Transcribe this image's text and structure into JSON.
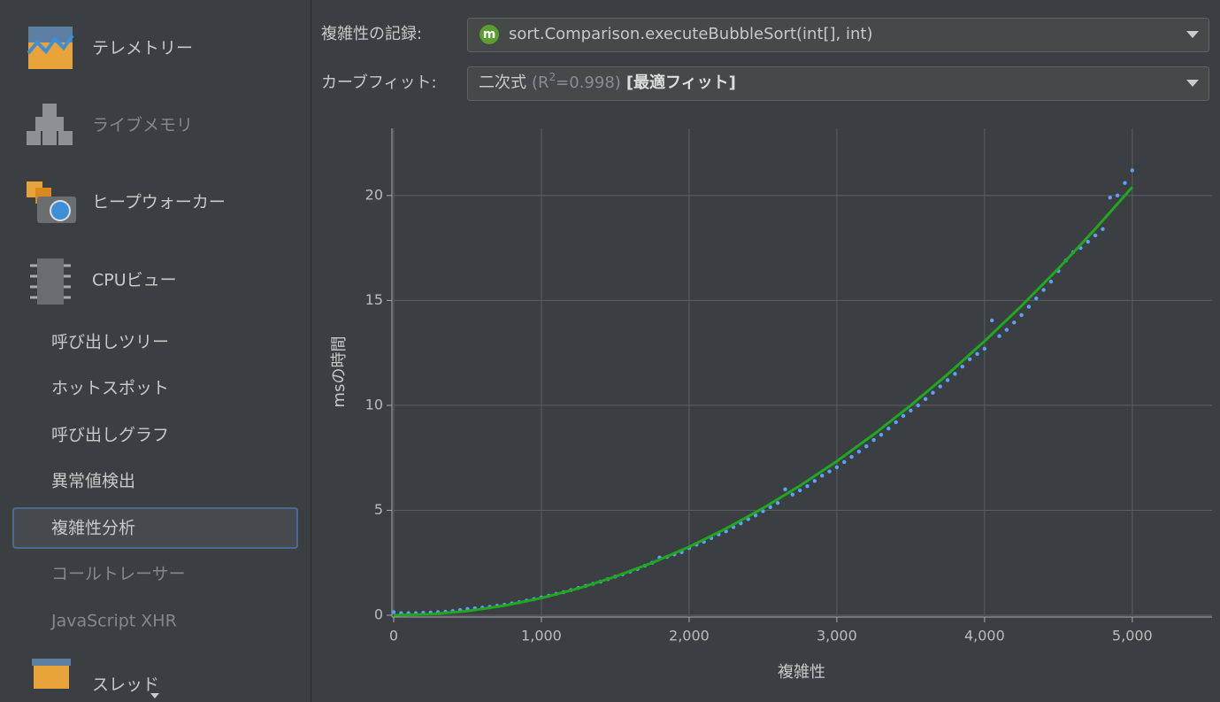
{
  "sidebar": {
    "items": [
      "テレメトリー",
      "ライブメモリ",
      "ヒープウォーカー",
      "CPUビュー",
      "呼び出しツリー",
      "ホットスポット",
      "呼び出しグラフ",
      "異常値検出",
      "複雑性分析",
      "コールトレーサー",
      "JavaScript XHR",
      "スレッド"
    ]
  },
  "controls": {
    "record_label": "複雑性の記録:",
    "record_value": "sort.Comparison.executeBubbleSort(int[], int)",
    "record_icon": "m",
    "fit_label": "カーブフィット:",
    "fit_value": {
      "name": "二次式",
      "r_open": "(R",
      "r_sup": "2",
      "r_close": "=0.998)",
      "best": "[最適フィット]"
    }
  },
  "chart_data": {
    "type": "scatter",
    "x_label": "複雑性",
    "y_label": "msの時間",
    "color": "#5aa0ff",
    "x": [
      0,
      50,
      100,
      150,
      200,
      250,
      300,
      350,
      400,
      450,
      500,
      550,
      600,
      650,
      700,
      750,
      800,
      850,
      900,
      950,
      1000,
      1050,
      1100,
      1150,
      1200,
      1250,
      1300,
      1350,
      1400,
      1450,
      1500,
      1550,
      1600,
      1650,
      1700,
      1750,
      1800,
      1850,
      1900,
      1950,
      2000,
      2050,
      2100,
      2150,
      2200,
      2250,
      2300,
      2350,
      2400,
      2450,
      2500,
      2550,
      2600,
      2650,
      2700,
      2750,
      2800,
      2850,
      2900,
      2950,
      3000,
      3050,
      3100,
      3150,
      3200,
      3250,
      3300,
      3350,
      3400,
      3450,
      3500,
      3550,
      3600,
      3650,
      3700,
      3750,
      3800,
      3850,
      3900,
      3950,
      4000,
      4050,
      4100,
      4150,
      4200,
      4250,
      4300,
      4350,
      4400,
      4450,
      4500,
      4550,
      4600,
      4650,
      4700,
      4750,
      4800,
      4850,
      4900,
      4950,
      5000
    ],
    "values": [
      0.15,
      0.1,
      0.1,
      0.1,
      0.12,
      0.13,
      0.15,
      0.17,
      0.2,
      0.25,
      0.3,
      0.33,
      0.36,
      0.4,
      0.45,
      0.5,
      0.56,
      0.62,
      0.7,
      0.77,
      0.85,
      0.93,
      1.02,
      1.1,
      1.2,
      1.3,
      1.4,
      1.5,
      1.6,
      1.72,
      1.84,
      1.95,
      2.08,
      2.2,
      2.36,
      2.5,
      2.75,
      2.78,
      2.9,
      3.0,
      3.2,
      3.36,
      3.5,
      3.68,
      3.85,
      4.0,
      4.2,
      4.38,
      4.58,
      4.76,
      4.96,
      5.15,
      5.35,
      6.0,
      5.75,
      5.95,
      6.15,
      6.4,
      6.65,
      6.85,
      7.05,
      7.3,
      7.55,
      7.8,
      8.05,
      8.35,
      8.6,
      8.9,
      9.2,
      9.5,
      9.75,
      10.0,
      10.3,
      10.6,
      10.9,
      11.2,
      11.5,
      11.85,
      12.2,
      12.45,
      12.7,
      14.05,
      13.3,
      13.6,
      13.95,
      14.3,
      14.7,
      15.1,
      15.5,
      15.9,
      16.4,
      16.9,
      17.3,
      17.5,
      17.8,
      18.1,
      18.4,
      19.9,
      20.0,
      20.6,
      21.2
    ],
    "fit": {
      "color": "#1fa81f",
      "x": [
        0,
        250,
        500,
        750,
        1000,
        1250,
        1500,
        1750,
        2000,
        2250,
        2500,
        2750,
        3000,
        3250,
        3500,
        3750,
        4000,
        4250,
        4500,
        4750,
        5000
      ],
      "values": [
        0,
        0.05,
        0.2,
        0.46,
        0.82,
        1.28,
        1.84,
        2.5,
        3.26,
        4.13,
        5.1,
        6.17,
        7.34,
        8.62,
        10.0,
        11.48,
        13.06,
        14.74,
        16.52,
        18.41,
        20.4
      ]
    },
    "xlim": [
      0,
      5540
    ],
    "ylim": [
      0,
      23.2
    ],
    "xticks": [
      0,
      {
        "value": 1000,
        "label": "1,000"
      },
      {
        "value": 2000,
        "label": "2,000"
      },
      {
        "value": 3000,
        "label": "3,000"
      },
      {
        "value": 4000,
        "label": "4,000"
      },
      {
        "value": 5000,
        "label": "5,000"
      }
    ],
    "yticks": [
      0,
      5,
      10,
      15,
      20
    ],
    "grid": true
  }
}
